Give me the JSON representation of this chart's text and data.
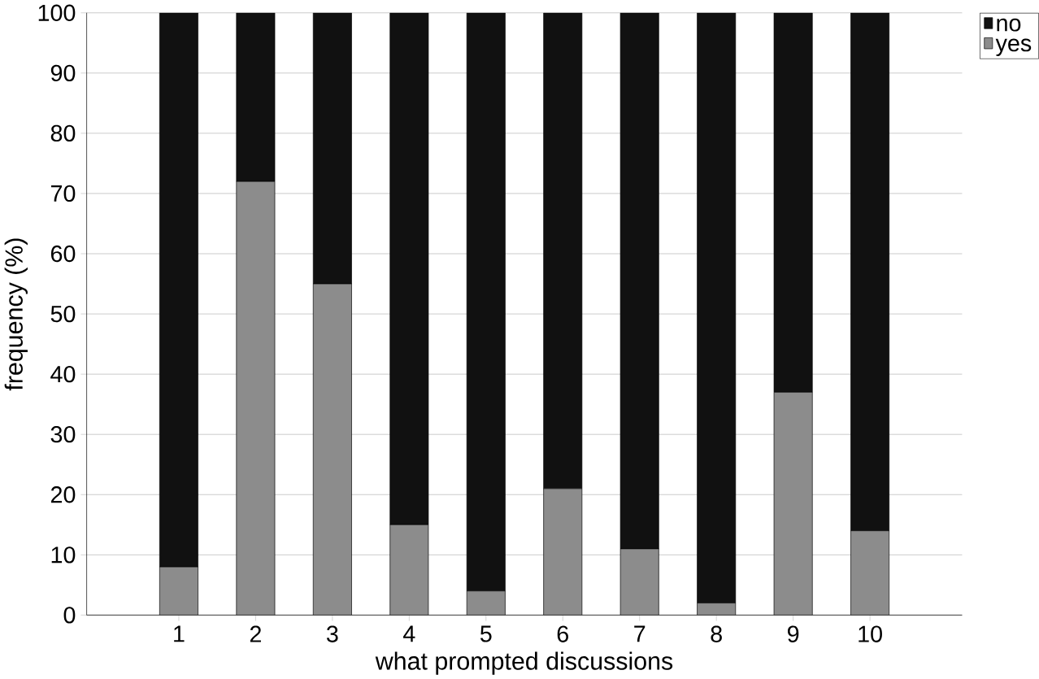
{
  "chart_data": {
    "type": "bar",
    "stacked": true,
    "xlabel": "what prompted discussions",
    "ylabel": "frequency (%)",
    "categories": [
      "1",
      "2",
      "3",
      "4",
      "5",
      "6",
      "7",
      "8",
      "9",
      "10"
    ],
    "series": [
      {
        "name": "yes",
        "color": "#8c8c8c",
        "values": [
          8,
          72,
          55,
          15,
          4,
          21,
          11,
          2,
          37,
          14
        ]
      },
      {
        "name": "no",
        "color": "#111111",
        "values": [
          92,
          28,
          45,
          85,
          96,
          79,
          89,
          98,
          63,
          86
        ]
      }
    ],
    "ylim": [
      0,
      100
    ],
    "yticks": [
      0,
      10,
      20,
      30,
      40,
      50,
      60,
      70,
      80,
      90,
      100
    ],
    "grid": "y",
    "legend": "top right"
  }
}
